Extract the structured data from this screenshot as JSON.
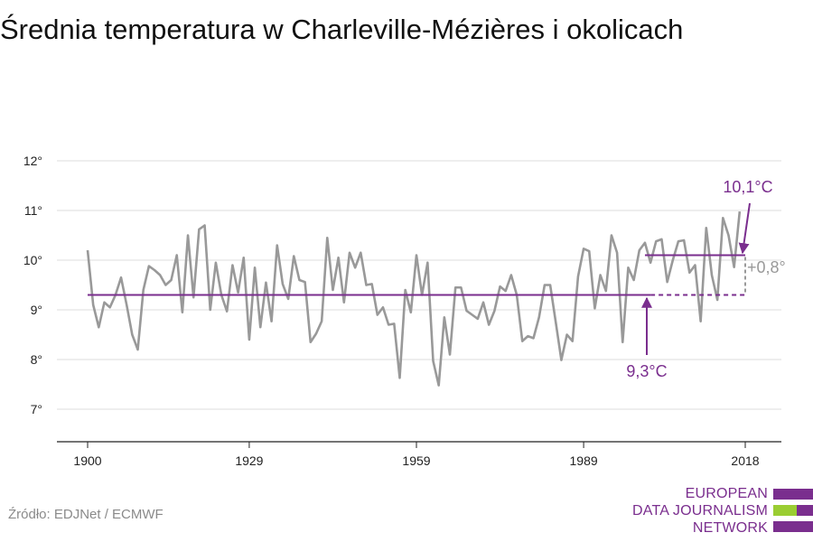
{
  "title": "Średnia temperatura w Charleville-Mézières i okolicach",
  "source": "Źródło: EDJNet / ECMWF",
  "logo": {
    "lines": [
      "EUROPEAN",
      "DATA JOURNALISM",
      "NETWORK"
    ],
    "colors": [
      "#7a2e8e",
      "#9acd32",
      "#7a2e8e"
    ]
  },
  "colors": {
    "line": "#999999",
    "accent": "#7a2e8e",
    "grid": "#dddddd",
    "axis": "#222222",
    "delta": "#999999"
  },
  "chart_data": {
    "type": "line",
    "title": "Średnia temperatura w Charleville-Mézières i okolicach",
    "xlabel": "",
    "ylabel": "",
    "xlim": [
      1900,
      2018
    ],
    "ylim": [
      6.4,
      12.3
    ],
    "x_ticks": [
      1900,
      1929,
      1959,
      1989,
      2018
    ],
    "y_ticks": [
      {
        "value": 7,
        "label": "7°"
      },
      {
        "value": 8,
        "label": "8°"
      },
      {
        "value": 9,
        "label": "9°"
      },
      {
        "value": 10,
        "label": "10°"
      },
      {
        "value": 11,
        "label": "11°"
      },
      {
        "value": 12,
        "label": "12°"
      }
    ],
    "grid": true,
    "series": [
      {
        "x_start": 1900,
        "values": [
          10.2,
          9.1,
          8.65,
          9.15,
          9.05,
          9.3,
          9.65,
          9.1,
          8.5,
          8.2,
          9.4,
          9.88,
          9.8,
          9.7,
          9.5,
          9.6,
          10.1,
          8.95,
          10.5,
          9.25,
          10.62,
          10.7,
          9.0,
          9.95,
          9.3,
          8.97,
          9.9,
          9.35,
          10.05,
          8.4,
          9.85,
          8.65,
          9.55,
          8.77,
          10.3,
          9.52,
          9.22,
          10.08,
          9.6,
          9.56,
          8.35,
          8.52,
          8.77,
          10.45,
          9.4,
          10.05,
          9.15,
          10.15,
          9.85,
          10.15,
          9.5,
          9.52,
          8.9,
          9.05,
          8.7,
          8.72,
          7.63,
          9.4,
          8.95,
          10.1,
          9.3,
          9.95,
          7.97,
          7.48,
          8.85,
          8.1,
          9.45,
          9.45,
          8.98,
          8.9,
          8.82,
          9.15,
          8.7,
          8.98,
          9.47,
          9.38,
          9.7,
          9.3,
          8.37,
          8.47,
          8.43,
          8.85,
          9.5,
          9.5,
          8.75,
          7.99,
          8.5,
          8.37,
          9.67,
          10.23,
          10.18,
          9.03,
          9.7,
          9.38,
          10.5,
          10.15,
          8.35,
          9.85,
          9.6,
          10.2,
          10.35,
          9.95,
          10.38,
          10.42,
          9.56,
          10.0,
          10.38,
          10.4,
          9.75,
          9.9,
          8.77,
          10.65,
          9.7,
          9.2,
          10.85,
          10.5,
          9.86,
          10.98
        ]
      }
    ],
    "reference_lines": [
      {
        "label": "9,3°C",
        "value": 9.3,
        "x_from": 1900,
        "x_to": 2018
      },
      {
        "label": "10,1°C",
        "value": 10.1,
        "x_from": 2000,
        "x_to": 2018
      }
    ],
    "delta_label": "+0,8°"
  }
}
